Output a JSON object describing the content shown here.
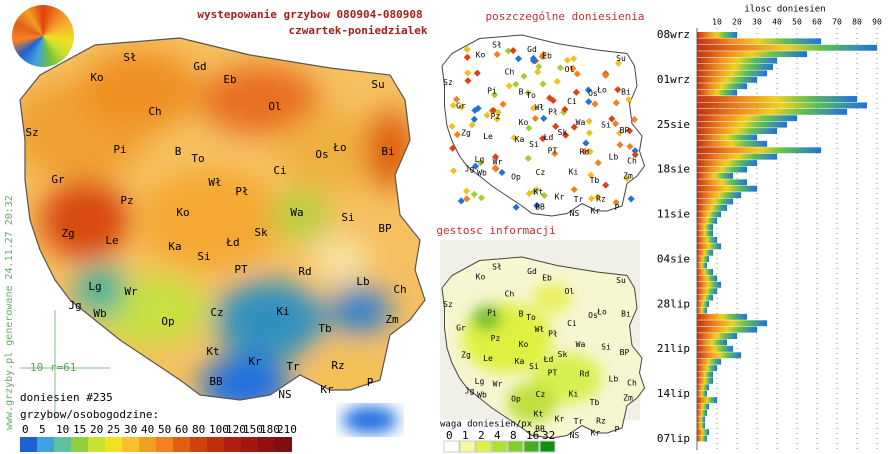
{
  "header": {
    "title": "wystepowanie grzybow 080904-080908",
    "subtitle": "czwartek-poniedzialek"
  },
  "main_map": {
    "labels": [
      "Sł",
      "Gd",
      "Ko",
      "Eb",
      "Su",
      "Ch",
      "Ol",
      "Sz",
      "Pi",
      "B",
      "To",
      "Ło",
      "Os",
      "Bi",
      "Ci",
      "Gr",
      "Wł",
      "Pł",
      "Pz",
      "Ko",
      "Wa",
      "Si",
      "Zg",
      "Le",
      "Ka",
      "Łd",
      "Sk",
      "BP",
      "Si",
      "PT",
      "Rd",
      "Lg",
      "Lb",
      "Ch",
      "Wr",
      "Jg",
      "Wb",
      "Op",
      "Cz",
      "Ki",
      "Zm",
      "Tb",
      "Kt",
      "Kr",
      "Tr",
      "Rz",
      "BB",
      "Kr",
      "NS",
      "P"
    ],
    "count_label": "doniesien #235",
    "scale_note": "10 r=61",
    "watermark": "www.grzyby.pl generowane 24.11.27 20:32"
  },
  "reports_map": {
    "title": "poszczególne doniesienia"
  },
  "density_map": {
    "title": "gestosc informacji"
  },
  "legend": {
    "title": "grzybow/osobogodzine:",
    "ticks": [
      "0",
      "5",
      "10",
      "15",
      "20",
      "25",
      "30",
      "40",
      "50",
      "60",
      "80",
      "100",
      "120",
      "150",
      "180",
      "210"
    ]
  },
  "weight_legend": {
    "title": "waga doniesien/px",
    "ticks": [
      "0",
      "1",
      "2",
      "4",
      "8",
      "16",
      "32"
    ]
  },
  "chart_data": {
    "type": "bar",
    "orientation": "horizontal",
    "title": "ilosc doniesien",
    "categories": [
      "08wrz",
      null,
      null,
      null,
      null,
      null,
      null,
      "01wrz",
      null,
      null,
      null,
      null,
      null,
      null,
      "25sie",
      null,
      null,
      null,
      null,
      null,
      null,
      "18sie",
      null,
      null,
      null,
      null,
      null,
      null,
      "11sie",
      null,
      null,
      null,
      null,
      null,
      null,
      "04sie",
      null,
      null,
      null,
      null,
      null,
      null,
      "28lip",
      null,
      null,
      null,
      null,
      null,
      null,
      "21lip",
      null,
      null,
      null,
      null,
      null,
      null,
      "14lip",
      null,
      null,
      null,
      null,
      null,
      null,
      "07lip"
    ],
    "values": [
      20,
      62,
      90,
      55,
      40,
      38,
      35,
      30,
      25,
      20,
      80,
      85,
      75,
      50,
      45,
      40,
      30,
      35,
      62,
      40,
      30,
      25,
      18,
      25,
      30,
      22,
      18,
      15,
      12,
      10,
      8,
      8,
      10,
      12,
      8,
      6,
      5,
      8,
      10,
      12,
      10,
      8,
      6,
      5,
      25,
      35,
      30,
      20,
      15,
      18,
      22,
      12,
      10,
      8,
      8,
      6,
      5,
      10,
      6,
      5,
      4,
      4,
      6,
      5
    ],
    "xlim": [
      0,
      90
    ],
    "xticks": [
      10,
      20,
      30,
      40,
      50,
      60,
      70,
      80,
      90
    ],
    "grid": true
  }
}
